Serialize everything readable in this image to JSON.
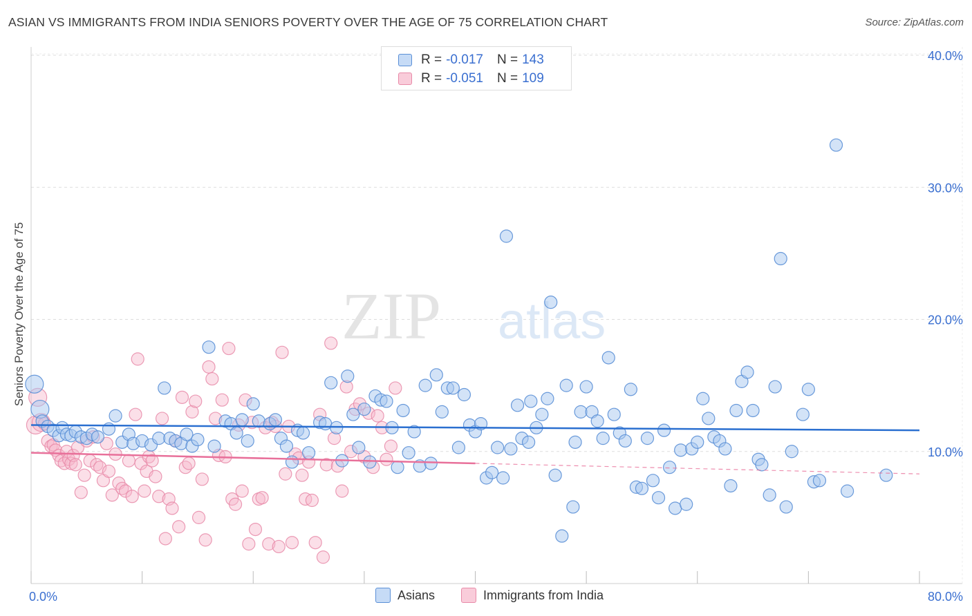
{
  "title": "ASIAN VS IMMIGRANTS FROM INDIA SENIORS POVERTY OVER THE AGE OF 75 CORRELATION CHART",
  "source": "Source: ZipAtlas.com",
  "watermark": {
    "zip": "ZIP",
    "atlas": "atlas"
  },
  "legend": {
    "series1": {
      "r_label": "R = ",
      "r_value": "-0.017",
      "n_label": "N = ",
      "n_value": "143"
    },
    "series2": {
      "r_label": "R = ",
      "r_value": "-0.051",
      "n_label": "N = ",
      "n_value": "109"
    }
  },
  "colors": {
    "asian_fill": "#a8c8f0",
    "asian_stroke": "#5a8fd6",
    "asian_line": "#2a6fd0",
    "india_fill": "#f6b8cc",
    "india_stroke": "#e88aa8",
    "india_line": "#e8709a",
    "axis_text": "#3a6fd0",
    "grid": "#dddddd"
  },
  "chart_data": {
    "type": "scatter",
    "title": "ASIAN VS IMMIGRANTS FROM INDIA SENIORS POVERTY OVER THE AGE OF 75 CORRELATION CHART",
    "xlabel": "",
    "ylabel": "Seniors Poverty Over the Age of 75",
    "xlim": [
      0,
      80
    ],
    "ylim": [
      0,
      40
    ],
    "x_tick_labels": [
      "0.0%",
      "80.0%"
    ],
    "y_tick_labels": [
      "10.0%",
      "20.0%",
      "30.0%",
      "40.0%"
    ],
    "y_ticks": [
      10,
      20,
      30,
      40
    ],
    "grid": true,
    "series": [
      {
        "name": "Asians",
        "r": -0.017,
        "n": 143,
        "trend": {
          "x": [
            0,
            80
          ],
          "y": [
            12.0,
            11.6
          ]
        },
        "points": [
          [
            0.3,
            15.1
          ],
          [
            0.8,
            13.2
          ],
          [
            1.0,
            12.3
          ],
          [
            1.5,
            11.9
          ],
          [
            2.0,
            11.6
          ],
          [
            2.5,
            11.2
          ],
          [
            2.8,
            11.8
          ],
          [
            3.2,
            11.3
          ],
          [
            3.6,
            11.2
          ],
          [
            4.0,
            11.5
          ],
          [
            4.5,
            11.1
          ],
          [
            5.0,
            11.0
          ],
          [
            5.5,
            11.3
          ],
          [
            6.0,
            11.1
          ],
          [
            7.0,
            11.7
          ],
          [
            7.6,
            12.7
          ],
          [
            8.2,
            10.7
          ],
          [
            8.8,
            11.3
          ],
          [
            9.2,
            10.6
          ],
          [
            10.0,
            10.8
          ],
          [
            10.8,
            10.5
          ],
          [
            11.5,
            11.0
          ],
          [
            12.0,
            14.8
          ],
          [
            12.5,
            11.0
          ],
          [
            13.0,
            10.8
          ],
          [
            13.5,
            10.6
          ],
          [
            14.0,
            11.3
          ],
          [
            14.5,
            10.4
          ],
          [
            15.0,
            10.9
          ],
          [
            16.0,
            17.9
          ],
          [
            16.5,
            10.4
          ],
          [
            17.5,
            12.3
          ],
          [
            18.0,
            12.1
          ],
          [
            18.5,
            11.4
          ],
          [
            19.0,
            12.4
          ],
          [
            19.5,
            10.8
          ],
          [
            20.0,
            13.6
          ],
          [
            20.5,
            12.3
          ],
          [
            21.5,
            12.1
          ],
          [
            22.0,
            12.4
          ],
          [
            22.5,
            11.0
          ],
          [
            23.0,
            10.4
          ],
          [
            23.5,
            9.2
          ],
          [
            24.0,
            11.6
          ],
          [
            24.5,
            11.4
          ],
          [
            25.0,
            9.9
          ],
          [
            26.0,
            12.2
          ],
          [
            26.5,
            12.1
          ],
          [
            27.0,
            15.2
          ],
          [
            27.5,
            11.8
          ],
          [
            28.0,
            9.3
          ],
          [
            28.5,
            15.7
          ],
          [
            29.0,
            12.8
          ],
          [
            29.5,
            10.3
          ],
          [
            30.0,
            13.2
          ],
          [
            30.5,
            9.2
          ],
          [
            31.0,
            14.2
          ],
          [
            31.5,
            13.9
          ],
          [
            32.0,
            13.8
          ],
          [
            32.5,
            11.8
          ],
          [
            33.0,
            8.8
          ],
          [
            33.5,
            13.1
          ],
          [
            34.0,
            9.9
          ],
          [
            34.5,
            11.5
          ],
          [
            35.0,
            8.9
          ],
          [
            35.5,
            15.0
          ],
          [
            36.0,
            9.1
          ],
          [
            36.5,
            15.8
          ],
          [
            37.0,
            13.0
          ],
          [
            37.5,
            14.8
          ],
          [
            38.0,
            14.8
          ],
          [
            38.5,
            10.3
          ],
          [
            39.0,
            14.3
          ],
          [
            39.5,
            12.0
          ],
          [
            40.0,
            11.5
          ],
          [
            40.5,
            12.1
          ],
          [
            41.0,
            8.0
          ],
          [
            41.5,
            8.4
          ],
          [
            42.0,
            10.3
          ],
          [
            42.5,
            8.0
          ],
          [
            42.8,
            26.3
          ],
          [
            43.2,
            10.2
          ],
          [
            43.8,
            13.5
          ],
          [
            44.2,
            11.0
          ],
          [
            44.8,
            10.7
          ],
          [
            45.0,
            13.8
          ],
          [
            45.5,
            11.8
          ],
          [
            46.0,
            12.8
          ],
          [
            46.5,
            14.0
          ],
          [
            46.8,
            21.3
          ],
          [
            47.2,
            8.2
          ],
          [
            47.8,
            3.6
          ],
          [
            48.2,
            15.0
          ],
          [
            48.8,
            5.8
          ],
          [
            49.0,
            10.7
          ],
          [
            49.5,
            13.0
          ],
          [
            50.0,
            14.9
          ],
          [
            50.5,
            13.0
          ],
          [
            51.0,
            12.3
          ],
          [
            51.5,
            11.0
          ],
          [
            52.0,
            17.1
          ],
          [
            52.5,
            12.8
          ],
          [
            53.0,
            11.4
          ],
          [
            53.5,
            10.8
          ],
          [
            54.0,
            14.7
          ],
          [
            54.5,
            7.3
          ],
          [
            55.0,
            7.2
          ],
          [
            55.5,
            11.0
          ],
          [
            56.0,
            7.8
          ],
          [
            56.5,
            6.5
          ],
          [
            57.0,
            11.6
          ],
          [
            57.5,
            8.8
          ],
          [
            58.0,
            5.7
          ],
          [
            58.5,
            10.1
          ],
          [
            59.0,
            6.0
          ],
          [
            59.5,
            10.2
          ],
          [
            60.0,
            10.7
          ],
          [
            60.5,
            14.0
          ],
          [
            61.0,
            12.5
          ],
          [
            61.5,
            11.1
          ],
          [
            62.0,
            10.8
          ],
          [
            62.5,
            10.2
          ],
          [
            63.0,
            7.4
          ],
          [
            63.5,
            13.1
          ],
          [
            64.0,
            15.3
          ],
          [
            64.5,
            16.0
          ],
          [
            65.0,
            13.1
          ],
          [
            65.5,
            9.4
          ],
          [
            65.8,
            9.0
          ],
          [
            66.5,
            6.7
          ],
          [
            67.0,
            14.9
          ],
          [
            68.0,
            5.8
          ],
          [
            68.5,
            10.0
          ],
          [
            69.5,
            12.8
          ],
          [
            70.0,
            14.7
          ],
          [
            70.5,
            7.7
          ],
          [
            71.0,
            7.8
          ],
          [
            72.5,
            33.2
          ],
          [
            73.5,
            7.0
          ],
          [
            67.5,
            24.6
          ],
          [
            77.0,
            8.2
          ]
        ]
      },
      {
        "name": "Immigrants from India",
        "r": -0.051,
        "n": 109,
        "trend": {
          "x": [
            0,
            40
          ],
          "y": [
            9.9,
            9.1
          ]
        },
        "trend_dashed": {
          "x": [
            40,
            80
          ],
          "y": [
            9.1,
            8.3
          ]
        },
        "points": [
          [
            0.4,
            12.0
          ],
          [
            0.6,
            14.1
          ],
          [
            0.9,
            12.2
          ],
          [
            1.2,
            12.1
          ],
          [
            1.5,
            10.8
          ],
          [
            1.8,
            10.4
          ],
          [
            2.0,
            10.5
          ],
          [
            2.2,
            10.1
          ],
          [
            2.5,
            9.7
          ],
          [
            2.7,
            9.3
          ],
          [
            3.0,
            9.1
          ],
          [
            3.2,
            10.0
          ],
          [
            3.4,
            9.4
          ],
          [
            3.6,
            9.1
          ],
          [
            3.8,
            9.7
          ],
          [
            4.0,
            9.0
          ],
          [
            4.2,
            10.3
          ],
          [
            4.5,
            6.9
          ],
          [
            4.8,
            8.2
          ],
          [
            5.0,
            10.8
          ],
          [
            5.3,
            9.3
          ],
          [
            5.6,
            11.1
          ],
          [
            5.9,
            9.0
          ],
          [
            6.2,
            8.8
          ],
          [
            6.5,
            7.8
          ],
          [
            6.8,
            10.6
          ],
          [
            7.0,
            8.5
          ],
          [
            7.3,
            6.7
          ],
          [
            7.6,
            9.8
          ],
          [
            7.9,
            7.6
          ],
          [
            8.2,
            7.2
          ],
          [
            8.5,
            7.0
          ],
          [
            8.8,
            9.3
          ],
          [
            9.1,
            6.6
          ],
          [
            9.4,
            12.8
          ],
          [
            9.6,
            17.0
          ],
          [
            9.9,
            9.1
          ],
          [
            10.2,
            7.0
          ],
          [
            10.4,
            8.5
          ],
          [
            10.6,
            9.6
          ],
          [
            10.9,
            9.3
          ],
          [
            11.2,
            8.1
          ],
          [
            11.5,
            6.6
          ],
          [
            11.8,
            12.5
          ],
          [
            12.1,
            3.4
          ],
          [
            12.4,
            6.4
          ],
          [
            12.7,
            5.7
          ],
          [
            13.0,
            10.8
          ],
          [
            13.3,
            4.3
          ],
          [
            13.6,
            14.1
          ],
          [
            13.9,
            8.8
          ],
          [
            14.2,
            9.1
          ],
          [
            14.5,
            13.0
          ],
          [
            14.8,
            13.8
          ],
          [
            15.1,
            5.0
          ],
          [
            15.4,
            7.9
          ],
          [
            15.7,
            3.3
          ],
          [
            16.0,
            16.4
          ],
          [
            16.3,
            15.5
          ],
          [
            16.6,
            12.5
          ],
          [
            16.9,
            9.7
          ],
          [
            17.2,
            13.9
          ],
          [
            17.5,
            9.6
          ],
          [
            17.8,
            17.8
          ],
          [
            18.1,
            6.4
          ],
          [
            18.4,
            6.0
          ],
          [
            18.7,
            12.0
          ],
          [
            19.0,
            7.0
          ],
          [
            19.3,
            13.9
          ],
          [
            19.6,
            3.0
          ],
          [
            19.9,
            12.2
          ],
          [
            20.2,
            4.1
          ],
          [
            20.5,
            6.4
          ],
          [
            20.8,
            6.5
          ],
          [
            21.1,
            11.8
          ],
          [
            21.4,
            3.0
          ],
          [
            21.7,
            12.2
          ],
          [
            22.0,
            11.9
          ],
          [
            22.3,
            2.8
          ],
          [
            22.6,
            17.5
          ],
          [
            22.9,
            8.3
          ],
          [
            23.2,
            11.9
          ],
          [
            23.5,
            3.1
          ],
          [
            23.8,
            9.8
          ],
          [
            24.1,
            9.5
          ],
          [
            24.4,
            8.2
          ],
          [
            24.7,
            6.4
          ],
          [
            25.0,
            9.2
          ],
          [
            25.3,
            6.3
          ],
          [
            25.6,
            3.1
          ],
          [
            26.0,
            12.8
          ],
          [
            26.3,
            2.0
          ],
          [
            26.6,
            9.0
          ],
          [
            27.0,
            18.2
          ],
          [
            27.3,
            11.0
          ],
          [
            27.6,
            8.9
          ],
          [
            28.0,
            7.0
          ],
          [
            28.4,
            14.9
          ],
          [
            28.8,
            10.0
          ],
          [
            29.2,
            13.2
          ],
          [
            29.6,
            13.6
          ],
          [
            30.0,
            9.6
          ],
          [
            30.4,
            12.9
          ],
          [
            30.8,
            8.8
          ],
          [
            31.2,
            12.7
          ],
          [
            31.6,
            11.8
          ],
          [
            32.0,
            9.4
          ],
          [
            32.4,
            10.4
          ],
          [
            32.8,
            14.8
          ]
        ]
      }
    ]
  },
  "bottom_legend": {
    "series1": "Asians",
    "series2": "Immigrants from India"
  }
}
